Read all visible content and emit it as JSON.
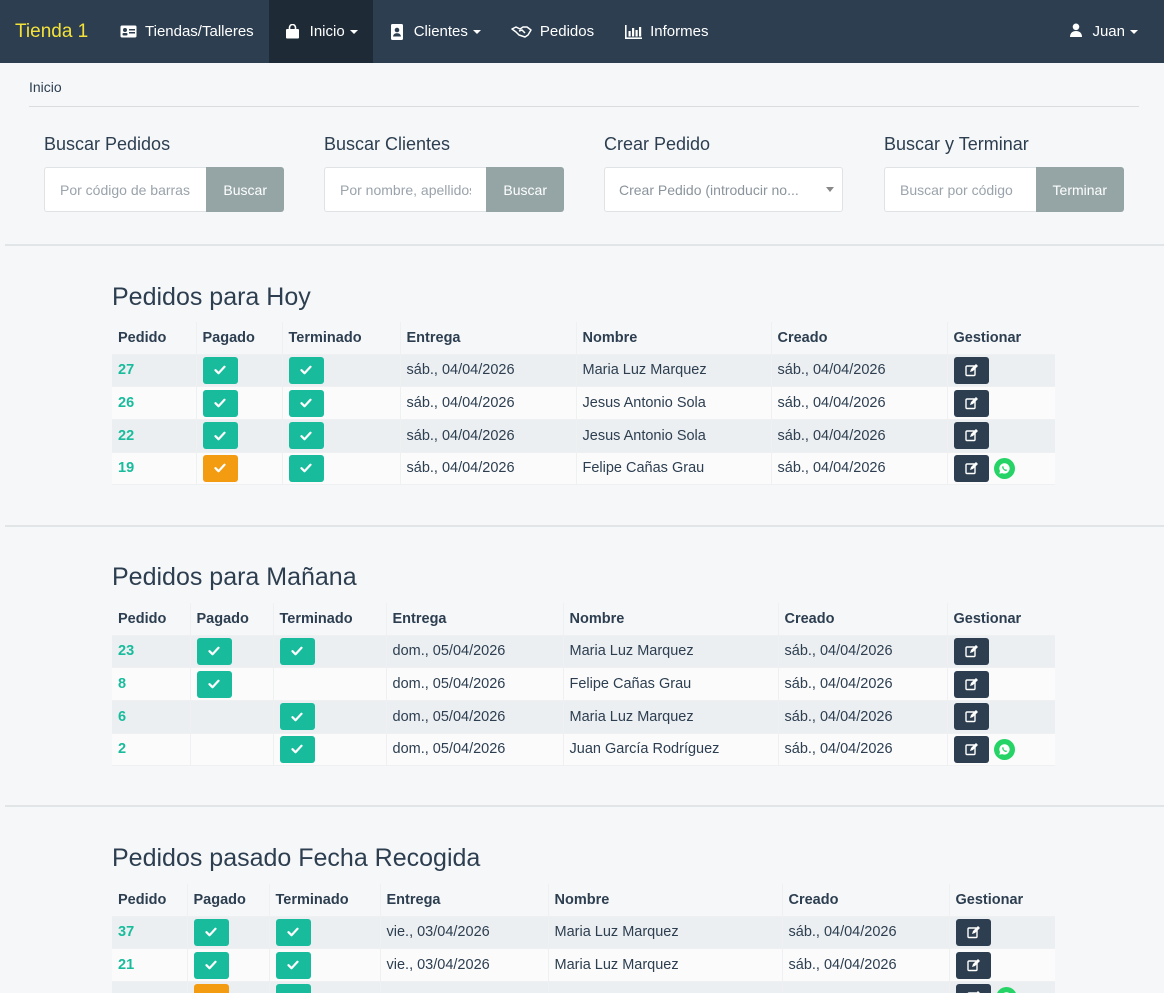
{
  "navbar": {
    "brand": "Tienda 1",
    "items": [
      {
        "label": "Tiendas/Talleres",
        "icon": "id-card-icon",
        "dropdown": false,
        "active": false
      },
      {
        "label": "Inicio",
        "icon": "shopping-bag-icon",
        "dropdown": true,
        "active": true
      },
      {
        "label": "Clientes",
        "icon": "address-book-icon",
        "dropdown": true,
        "active": false
      },
      {
        "label": "Pedidos",
        "icon": "handshake-icon",
        "dropdown": false,
        "active": false
      },
      {
        "label": "Informes",
        "icon": "bar-chart-icon",
        "dropdown": false,
        "active": false
      }
    ],
    "user": {
      "label": "Juan",
      "icon": "user-icon"
    }
  },
  "breadcrumb": "Inicio",
  "search": {
    "pedidos": {
      "title": "Buscar Pedidos",
      "placeholder": "Por código de barras",
      "button": "Buscar"
    },
    "clientes": {
      "title": "Buscar Clientes",
      "placeholder": "Por nombre, apellidos",
      "button": "Buscar"
    },
    "crear": {
      "title": "Crear Pedido",
      "select_text": "Crear Pedido (introducir no..."
    },
    "terminar": {
      "title": "Buscar y Terminar",
      "placeholder": "Buscar por código",
      "button": "Terminar"
    }
  },
  "columns": [
    "Pedido",
    "Pagado",
    "Terminado",
    "Entrega",
    "Nombre",
    "Creado",
    "Gestionar"
  ],
  "sections": [
    {
      "title": "Pedidos para Hoy",
      "rows": [
        {
          "id": "27",
          "pagado": "ok",
          "terminado": "ok",
          "entrega": "sáb., 04/04/2026",
          "nombre": "Maria Luz Marquez",
          "creado": "sáb., 04/04/2026",
          "whatsapp": false
        },
        {
          "id": "26",
          "pagado": "ok",
          "terminado": "ok",
          "entrega": "sáb., 04/04/2026",
          "nombre": "Jesus Antonio Sola",
          "creado": "sáb., 04/04/2026",
          "whatsapp": false
        },
        {
          "id": "22",
          "pagado": "ok",
          "terminado": "ok",
          "entrega": "sáb., 04/04/2026",
          "nombre": "Jesus Antonio Sola",
          "creado": "sáb., 04/04/2026",
          "whatsapp": false
        },
        {
          "id": "19",
          "pagado": "warn",
          "terminado": "ok",
          "entrega": "sáb., 04/04/2026",
          "nombre": "Felipe Cañas Grau",
          "creado": "sáb., 04/04/2026",
          "whatsapp": true
        }
      ]
    },
    {
      "title": "Pedidos para Mañana",
      "rows": [
        {
          "id": "23",
          "pagado": "ok",
          "terminado": "ok",
          "entrega": "dom., 05/04/2026",
          "nombre": "Maria Luz Marquez",
          "creado": "sáb., 04/04/2026",
          "whatsapp": false
        },
        {
          "id": "8",
          "pagado": "ok",
          "terminado": "",
          "entrega": "dom., 05/04/2026",
          "nombre": "Felipe Cañas Grau",
          "creado": "sáb., 04/04/2026",
          "whatsapp": false
        },
        {
          "id": "6",
          "pagado": "",
          "terminado": "ok",
          "entrega": "dom., 05/04/2026",
          "nombre": "Maria Luz Marquez",
          "creado": "sáb., 04/04/2026",
          "whatsapp": false
        },
        {
          "id": "2",
          "pagado": "",
          "terminado": "ok",
          "entrega": "dom., 05/04/2026",
          "nombre": "Juan García Rodríguez",
          "creado": "sáb., 04/04/2026",
          "whatsapp": true
        }
      ]
    },
    {
      "title": "Pedidos pasado Fecha Recogida",
      "rows": [
        {
          "id": "37",
          "pagado": "ok",
          "terminado": "ok",
          "entrega": "vie., 03/04/2026",
          "nombre": "Maria Luz Marquez",
          "creado": "sáb., 04/04/2026",
          "whatsapp": false
        },
        {
          "id": "21",
          "pagado": "ok",
          "terminado": "ok",
          "entrega": "vie., 03/04/2026",
          "nombre": "Maria Luz Marquez",
          "creado": "sáb., 04/04/2026",
          "whatsapp": false
        },
        {
          "id": "",
          "pagado": "warn",
          "terminado": "ok",
          "entrega": "",
          "nombre": "",
          "creado": "",
          "whatsapp": true
        }
      ]
    }
  ],
  "colors": {
    "navbar": "#2c3e50",
    "brand": "#f4e23a",
    "success": "#18bc9c",
    "warning": "#f39c12",
    "secondary": "#95a5a6",
    "whatsapp": "#25d366"
  }
}
